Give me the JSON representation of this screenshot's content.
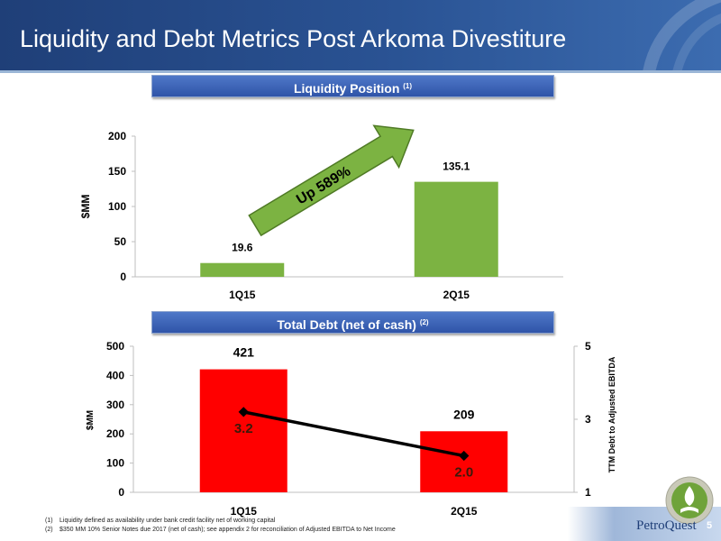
{
  "header": {
    "title": "Liquidity and Debt Metrics Post Arkoma Divestiture"
  },
  "sections": {
    "liquidity_title": "Liquidity Position",
    "liquidity_note": "(1)",
    "debt_title": "Total Debt (net of cash)",
    "debt_note": "(2)"
  },
  "chart_data": [
    {
      "type": "bar",
      "categories": [
        "1Q15",
        "2Q15"
      ],
      "values": [
        19.6,
        135.1
      ],
      "data_labels": [
        "19.6",
        "135.1"
      ],
      "ylabel": "$MM",
      "ylim": [
        0,
        200
      ],
      "yticks": [
        "0",
        "50",
        "100",
        "150",
        "200"
      ],
      "color": "#7cb342",
      "annotation": "Up 589%"
    },
    {
      "type": "bar",
      "categories": [
        "1Q15",
        "2Q15"
      ],
      "series": [
        {
          "values": [
            421,
            209
          ],
          "data_labels": [
            "421",
            "209"
          ],
          "color": "#ff0000"
        },
        {
          "values": [
            3.2,
            2.0
          ],
          "data_labels": [
            "3.2",
            "2.0"
          ],
          "type": "line",
          "axis": "right",
          "color": "#000000"
        }
      ],
      "ylabel": "$MM",
      "ylim": [
        0,
        500
      ],
      "yticks": [
        "0",
        "100",
        "200",
        "300",
        "400",
        "500"
      ],
      "y2label": "TTM Debt to Adjusted  EBITDA",
      "y2lim": [
        1,
        5
      ],
      "y2ticks": [
        "1",
        "3",
        "5"
      ]
    }
  ],
  "footnotes": [
    {
      "num": "(1)",
      "text": "Liquidity defined as availability under bank credit facility net of working capital"
    },
    {
      "num": "(2)",
      "text": "$350 MM 10% Senior Notes due 2017 (net of cash); see appendix 2 for reconciliation of Adjusted EBITDA to Net Income"
    }
  ],
  "footer": {
    "brand": "PetroQuest",
    "page_number": "5"
  }
}
